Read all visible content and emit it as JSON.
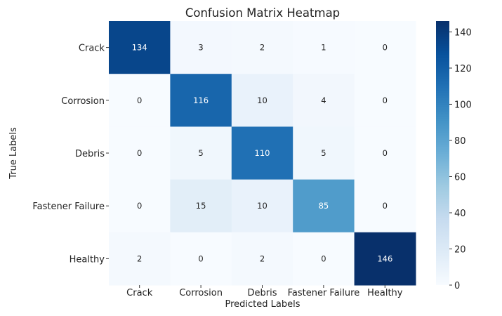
{
  "chart_data": {
    "type": "heatmap",
    "title": "Confusion Matrix Heatmap",
    "xlabel": "Predicted Labels",
    "ylabel": "True Labels",
    "x_categories": [
      "Crack",
      "Corrosion",
      "Debris",
      "Fastener Failure",
      "Healthy"
    ],
    "y_categories": [
      "Crack",
      "Corrosion",
      "Debris",
      "Fastener Failure",
      "Healthy"
    ],
    "values": [
      [
        134,
        3,
        2,
        1,
        0
      ],
      [
        0,
        116,
        10,
        4,
        0
      ],
      [
        0,
        5,
        110,
        5,
        0
      ],
      [
        0,
        15,
        10,
        85,
        0
      ],
      [
        2,
        0,
        2,
        0,
        146
      ]
    ],
    "colorbar": {
      "range": [
        0,
        146
      ],
      "ticks": [
        0,
        20,
        40,
        60,
        80,
        100,
        120,
        140
      ],
      "colormap": "Blues"
    },
    "annotations": true
  }
}
